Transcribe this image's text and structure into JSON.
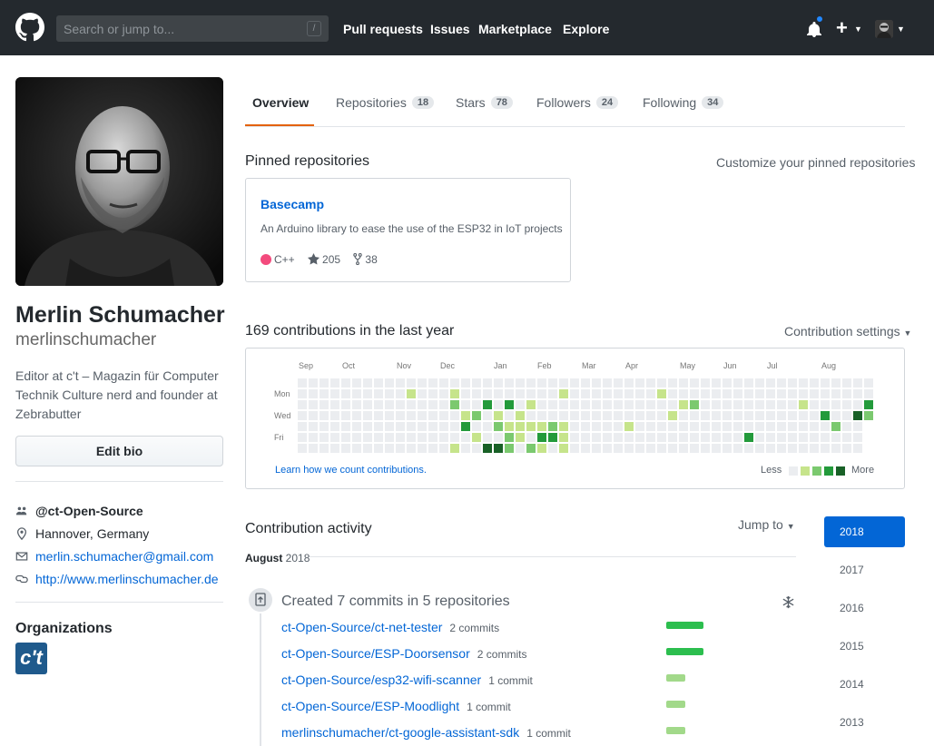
{
  "header": {
    "search_placeholder": "Search or jump to...",
    "search_shortcut": "/",
    "nav": [
      "Pull requests",
      "Issues",
      "Marketplace",
      "Explore"
    ]
  },
  "profile": {
    "fullname": "Merlin Schumacher",
    "login": "merlinschumacher",
    "bio": "Editor at c't – Magazin für Computer Technik Culture nerd and founder at Zebrabutter",
    "edit_bio": "Edit bio",
    "org_handle": "@ct-Open-Source",
    "location": "Hannover, Germany",
    "email": "merlin.schumacher@gmail.com",
    "website": "http://www.merlinschumacher.de",
    "organizations_heading": "Organizations",
    "org_avatar_text": "c't"
  },
  "tabs": [
    {
      "label": "Overview",
      "count": ""
    },
    {
      "label": "Repositories",
      "count": "18"
    },
    {
      "label": "Stars",
      "count": "78"
    },
    {
      "label": "Followers",
      "count": "24"
    },
    {
      "label": "Following",
      "count": "34"
    }
  ],
  "pinned": {
    "heading": "Pinned repositories",
    "customize": "Customize your pinned repositories",
    "repo": {
      "name": "Basecamp",
      "description": "An Arduino library to ease the use of the ESP32 in IoT projects",
      "language": "C++",
      "stars": "205",
      "forks": "38"
    }
  },
  "contributions": {
    "heading": "169 contributions in the last year",
    "settings": "Contribution settings",
    "months": [
      "Sep",
      "Oct",
      "Nov",
      "Dec",
      "Jan",
      "Feb",
      "Mar",
      "Apr",
      "May",
      "Jun",
      "Jul",
      "Aug"
    ],
    "days": [
      "Mon",
      "Wed",
      "Fri"
    ],
    "learn": "Learn how we count contributions.",
    "less": "Less",
    "more": "More",
    "colors": [
      "#ebedf0",
      "#c6e48b",
      "#7bc96f",
      "#239a3b",
      "#196127"
    ]
  },
  "activity": {
    "heading": "Contribution activity",
    "jump_to": "Jump to",
    "years": [
      "2018",
      "2017",
      "2016",
      "2015",
      "2014",
      "2013"
    ],
    "month": "August",
    "month_year": "2018",
    "created": "Created 7 commits in 5 repositories",
    "repos": [
      {
        "name": "ct-Open-Source/ct-net-tester",
        "commits": "2 commits",
        "count": 2
      },
      {
        "name": "ct-Open-Source/ESP-Doorsensor",
        "commits": "2 commits",
        "count": 2
      },
      {
        "name": "ct-Open-Source/esp32-wifi-scanner",
        "commits": "1 commit",
        "count": 1
      },
      {
        "name": "ct-Open-Source/ESP-Moodlight",
        "commits": "1 commit",
        "count": 1
      },
      {
        "name": "merlinschumacher/ct-google-assistant-sdk",
        "commits": "1 commit",
        "count": 1
      }
    ]
  }
}
